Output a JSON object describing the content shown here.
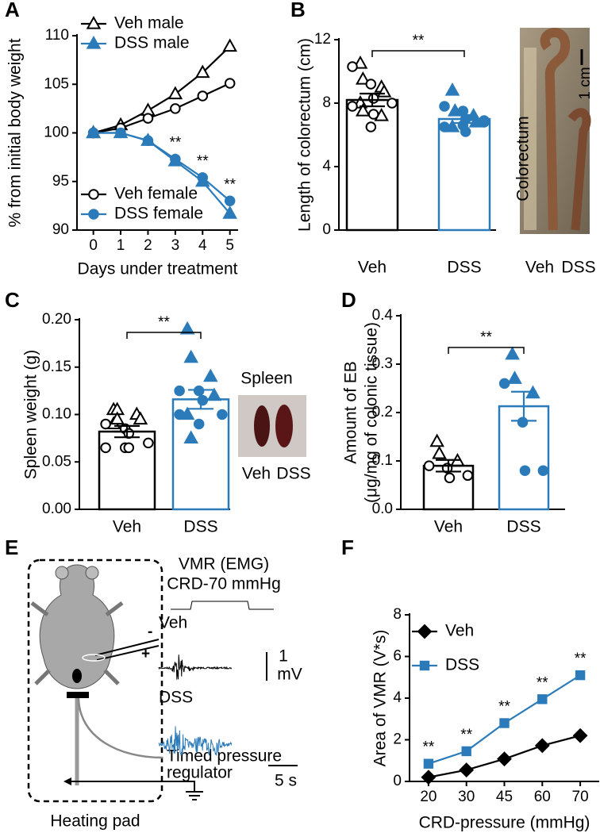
{
  "panel_labels": [
    "A",
    "B",
    "C",
    "D",
    "E",
    "F"
  ],
  "chart_data": [
    {
      "type": "line",
      "xlabel": "Days under treatment",
      "ylabel": "% from initial body weight",
      "x": [
        0,
        1,
        2,
        3,
        4,
        5
      ],
      "xlim": [
        -0.6,
        5.3
      ],
      "xticks": [
        0,
        1,
        2,
        3,
        4,
        5
      ],
      "ylim": [
        90,
        110
      ],
      "yticks": [
        90,
        95,
        100,
        105,
        110
      ],
      "series": [
        {
          "name": "Veh male",
          "color": "#000000",
          "marker": "triangle",
          "filled": false,
          "legend": "upper left",
          "values": [
            100,
            100.8,
            102.3,
            104,
            106.2,
            108.9
          ]
        },
        {
          "name": "DSS male",
          "color": "#2b7bba",
          "marker": "triangle",
          "filled": true,
          "legend": "upper left",
          "values": [
            100,
            100,
            99.2,
            97.1,
            95,
            91.7
          ]
        },
        {
          "name": "Veh female",
          "color": "#000000",
          "marker": "circle",
          "filled": false,
          "legend": "lower left",
          "values": [
            100,
            100.5,
            101.5,
            102.5,
            103.8,
            105.1
          ]
        },
        {
          "name": "DSS female",
          "color": "#2b7bba",
          "marker": "circle",
          "filled": true,
          "legend": "lower left",
          "values": [
            100,
            100,
            99.2,
            97.3,
            95.4,
            93
          ]
        }
      ],
      "annotations": [
        {
          "text": "**",
          "x": 3,
          "series": "DSS female"
        },
        {
          "text": "**",
          "x": 4,
          "series": "DSS female"
        },
        {
          "text": "**",
          "x": 5,
          "series": "DSS female"
        }
      ]
    },
    {
      "type": "bar",
      "ylabel": "Length of colorectum (cm)",
      "categories": [
        "Veh",
        "DSS"
      ],
      "values": [
        8.2,
        7.0
      ],
      "errors": [
        0.4,
        0.25
      ],
      "colors": [
        "#000000",
        "#2b7bba"
      ],
      "filled": [
        false,
        true
      ],
      "ylim": [
        0,
        12
      ],
      "yticks": [
        0,
        4,
        8,
        12
      ],
      "significance": "**",
      "points": [
        {
          "triangle": [
            10.5,
            9.5,
            9,
            8.7,
            8,
            7.5,
            7.2
          ],
          "circle": [
            10.3,
            9.2,
            8.3,
            8,
            7.8,
            6.5,
            7.3
          ]
        },
        {
          "triangle": [
            8.8,
            7.5,
            7.2,
            6.8,
            6.5
          ],
          "circle": [
            7.8,
            7.5,
            7,
            6.8,
            6.5,
            6.6,
            6.2,
            6.9
          ]
        }
      ]
    },
    {
      "type": "bar",
      "ylabel": "Spleen weight (g)",
      "categories": [
        "Veh",
        "DSS"
      ],
      "values": [
        0.082,
        0.116
      ],
      "errors": [
        0.006,
        0.01
      ],
      "colors": [
        "#000000",
        "#2b7bba"
      ],
      "filled": [
        false,
        true
      ],
      "ylim": [
        0,
        0.2
      ],
      "yticks": [
        {
          "value": 0,
          "label": "0.00"
        },
        0.05,
        {
          "value": 0.1,
          "label": "0.10"
        },
        0.15,
        {
          "value": 0.2,
          "label": "0.20"
        }
      ],
      "significance": "**",
      "points": [
        {
          "triangle": [
            0.105,
            0.105,
            0.1,
            0.095,
            0.09,
            0.095
          ],
          "circle": [
            0.09,
            0.085,
            0.08,
            0.07,
            0.065,
            0.065,
            0.065
          ]
        },
        {
          "triangle": [
            0.19,
            0.16,
            0.14,
            0.12,
            0.1,
            0.075
          ],
          "circle": [
            0.125,
            0.125,
            0.115,
            0.1,
            0.1,
            0.09
          ]
        }
      ]
    },
    {
      "type": "bar",
      "ylabel": [
        "Amount of EB",
        "(μg/mg of colonic tissue)"
      ],
      "categories": [
        "Veh",
        "DSS"
      ],
      "values": [
        0.09,
        0.213
      ],
      "errors": [
        0.012,
        0.03
      ],
      "colors": [
        "#000000",
        "#2b7bba"
      ],
      "filled": [
        false,
        true
      ],
      "ylim": [
        0,
        0.4
      ],
      "yticks": [
        {
          "value": 0,
          "label": "0.0"
        },
        0.1,
        0.2,
        0.3,
        0.4
      ],
      "significance": "**",
      "points": [
        {
          "triangle": [
            0.14,
            0.115,
            0.1
          ],
          "circle": [
            0.09,
            0.085,
            0.065,
            0.07
          ]
        },
        {
          "triangle": [
            0.32,
            0.27,
            0.24
          ],
          "circle": [
            0.26,
            0.18,
            0.08,
            0.08
          ]
        }
      ]
    },
    {
      "type": "line",
      "xlabel": "CRD-pressure (mmHg)",
      "ylabel": "Area of VMR (V*s)",
      "categories": [
        "20",
        "30",
        "45",
        "60",
        "70"
      ],
      "ylim": [
        0,
        8
      ],
      "yticks": [
        0,
        2,
        4,
        6,
        8
      ],
      "series": [
        {
          "name": "Veh",
          "color": "#000000",
          "marker": "diamond",
          "filled": true,
          "legend": "upper left",
          "values": [
            0.2,
            0.55,
            1.08,
            1.72,
            2.2
          ]
        },
        {
          "name": "DSS",
          "color": "#2b7bba",
          "marker": "square",
          "filled": true,
          "legend": "upper left",
          "values": [
            0.85,
            1.45,
            2.8,
            3.95,
            5.1
          ]
        }
      ],
      "annotations": [
        {
          "text": "**",
          "x": "20",
          "series": "DSS"
        },
        {
          "text": "**",
          "x": "30",
          "series": "DSS"
        },
        {
          "text": "**",
          "x": "45",
          "series": "DSS"
        },
        {
          "text": "**",
          "x": "60",
          "series": "DSS"
        },
        {
          "text": "**",
          "x": "70",
          "series": "DSS"
        }
      ]
    }
  ],
  "photo_b": {
    "scale": "1 cm",
    "label": "Colorectum",
    "categories": [
      "Veh",
      "DSS"
    ]
  },
  "photo_c": {
    "title": "Spleen",
    "categories": [
      "Veh",
      "DSS"
    ]
  },
  "diagram_e": {
    "title": "VMR (EMG)",
    "subtitle": "CRD-70 mmHg",
    "traces": [
      "Veh",
      "DSS"
    ],
    "voltage_scale": [
      "1",
      "mV"
    ],
    "time_scale": "5 s",
    "electrode": [
      "-",
      "+"
    ],
    "regulator": [
      "Timed pressure",
      "regulator"
    ],
    "caption": "Heating pad"
  }
}
